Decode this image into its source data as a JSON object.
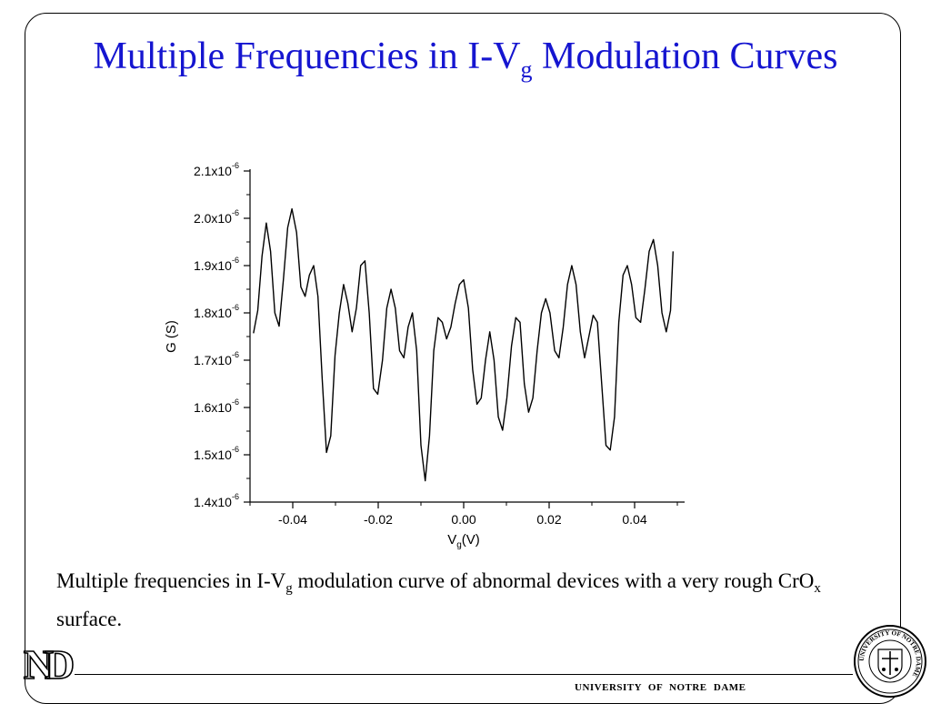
{
  "slide": {
    "title_pre": "Multiple Frequencies in I-V",
    "title_sub": "g",
    "title_post": " Modulation Curves",
    "caption_1": "Multiple frequencies in I-V",
    "caption_1_sub": "g",
    "caption_2": " modulation curve of abnormal devices with a very rough CrO",
    "caption_2_sub": "x",
    "caption_3": " surface.",
    "footer": "UNIVERSITY OF NOTRE DAME",
    "logo_left": "ND",
    "seal_label": "UNIVERSITY OF NOTRE DAME"
  },
  "chart_data": {
    "type": "line",
    "xlabel_main": "V",
    "xlabel_sub": "g",
    "xlabel_unit": "(V)",
    "ylabel": "G (S)",
    "xlim": [
      -0.05,
      0.05
    ],
    "ylim": [
      1.4e-06,
      2.1e-06
    ],
    "x_ticks": [
      {
        "value": -0.04,
        "label": "-0.04"
      },
      {
        "value": -0.02,
        "label": "-0.02"
      },
      {
        "value": 0.0,
        "label": "0.00"
      },
      {
        "value": 0.02,
        "label": "0.02"
      },
      {
        "value": 0.04,
        "label": "0.04"
      }
    ],
    "y_ticks": [
      {
        "value": 1.4e-06,
        "mantissa": "1.4x10",
        "exp": "-6"
      },
      {
        "value": 1.5e-06,
        "mantissa": "1.5x10",
        "exp": "-6"
      },
      {
        "value": 1.6e-06,
        "mantissa": "1.6x10",
        "exp": "-6"
      },
      {
        "value": 1.7e-06,
        "mantissa": "1.7x10",
        "exp": "-6"
      },
      {
        "value": 1.8e-06,
        "mantissa": "1.8x10",
        "exp": "-6"
      },
      {
        "value": 1.9e-06,
        "mantissa": "1.9x10",
        "exp": "-6"
      },
      {
        "value": 2e-06,
        "mantissa": "2.0x10",
        "exp": "-6"
      },
      {
        "value": 2.1e-06,
        "mantissa": "2.1x10",
        "exp": "-6"
      }
    ],
    "series": [
      {
        "x": [
          -0.0492,
          -0.0482,
          -0.0472,
          -0.0462,
          -0.0452,
          -0.0442,
          -0.0432,
          -0.0422,
          -0.0412,
          -0.0402,
          -0.0391,
          -0.0381,
          -0.0371,
          -0.0361,
          -0.0351,
          -0.0341,
          -0.0331,
          -0.0321,
          -0.0311,
          -0.0301,
          -0.0291,
          -0.0281,
          -0.0271,
          -0.0261,
          -0.0251,
          -0.0241,
          -0.0231,
          -0.0221,
          -0.0211,
          -0.0201,
          -0.019,
          -0.018,
          -0.017,
          -0.016,
          -0.015,
          -0.014,
          -0.013,
          -0.012,
          -0.011,
          -0.01,
          -0.009,
          -0.008,
          -0.007,
          -0.006,
          -0.005,
          -0.004,
          -0.003,
          -0.002,
          -0.001,
          0.0,
          0.0011,
          0.0021,
          0.0031,
          0.0041,
          0.0051,
          0.0061,
          0.0071,
          0.0081,
          0.0091,
          0.0101,
          0.0112,
          0.0122,
          0.0132,
          0.0142,
          0.0152,
          0.0162,
          0.0172,
          0.0182,
          0.0192,
          0.0202,
          0.0213,
          0.0223,
          0.0233,
          0.0243,
          0.0253,
          0.0263,
          0.0273,
          0.0283,
          0.0293,
          0.0303,
          0.0313,
          0.0323,
          0.0333,
          0.0343,
          0.0353,
          0.0363,
          0.0373,
          0.0383,
          0.0393,
          0.0403,
          0.0414,
          0.0424,
          0.0434,
          0.0444,
          0.0454,
          0.0464,
          0.0474,
          0.0484,
          0.049
        ],
        "y": [
          1.757e-06,
          1.805e-06,
          1.92e-06,
          1.99e-06,
          1.93e-06,
          1.8e-06,
          1.772e-06,
          1.87e-06,
          1.98e-06,
          2.02e-06,
          1.97e-06,
          1.855e-06,
          1.835e-06,
          1.88e-06,
          1.9e-06,
          1.835e-06,
          1.66e-06,
          1.505e-06,
          1.54e-06,
          1.71e-06,
          1.8e-06,
          1.86e-06,
          1.82e-06,
          1.76e-06,
          1.81e-06,
          1.9e-06,
          1.91e-06,
          1.8e-06,
          1.64e-06,
          1.628e-06,
          1.7e-06,
          1.81e-06,
          1.85e-06,
          1.81e-06,
          1.72e-06,
          1.705e-06,
          1.77e-06,
          1.8e-06,
          1.72e-06,
          1.52e-06,
          1.445e-06,
          1.54e-06,
          1.72e-06,
          1.79e-06,
          1.78e-06,
          1.745e-06,
          1.77e-06,
          1.82e-06,
          1.86e-06,
          1.87e-06,
          1.81e-06,
          1.68e-06,
          1.607e-06,
          1.62e-06,
          1.7e-06,
          1.76e-06,
          1.7e-06,
          1.58e-06,
          1.552e-06,
          1.62e-06,
          1.73e-06,
          1.79e-06,
          1.78e-06,
          1.65e-06,
          1.59e-06,
          1.62e-06,
          1.72e-06,
          1.8e-06,
          1.83e-06,
          1.8e-06,
          1.72e-06,
          1.705e-06,
          1.77e-06,
          1.86e-06,
          1.9e-06,
          1.86e-06,
          1.76e-06,
          1.705e-06,
          1.75e-06,
          1.795e-06,
          1.78e-06,
          1.65e-06,
          1.52e-06,
          1.51e-06,
          1.58e-06,
          1.78e-06,
          1.88e-06,
          1.9e-06,
          1.86e-06,
          1.79e-06,
          1.78e-06,
          1.85e-06,
          1.93e-06,
          1.955e-06,
          1.9e-06,
          1.8e-06,
          1.76e-06,
          1.805e-06,
          1.93e-06
        ]
      }
    ]
  }
}
